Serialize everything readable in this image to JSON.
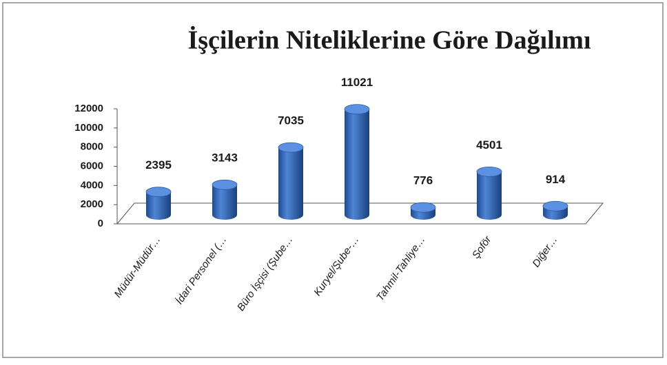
{
  "chart_data": {
    "type": "bar",
    "title": "İşçilerin Niteliklerine Göre Dağılımı",
    "categories": [
      "Müdür-Müdür…",
      "İdari Personel (…",
      "Büro İşçisi (Şube…",
      "Kuryel/Şube-…",
      "Tahmil-Tahliye…",
      "Şoför",
      "Diğer…"
    ],
    "values": [
      2395,
      3143,
      7035,
      11021,
      776,
      4501,
      914
    ],
    "color": "#2f64b5",
    "ylim": [
      0,
      12000
    ],
    "yticks": [
      0,
      2000,
      4000,
      6000,
      8000,
      10000,
      12000
    ],
    "grid": false
  }
}
